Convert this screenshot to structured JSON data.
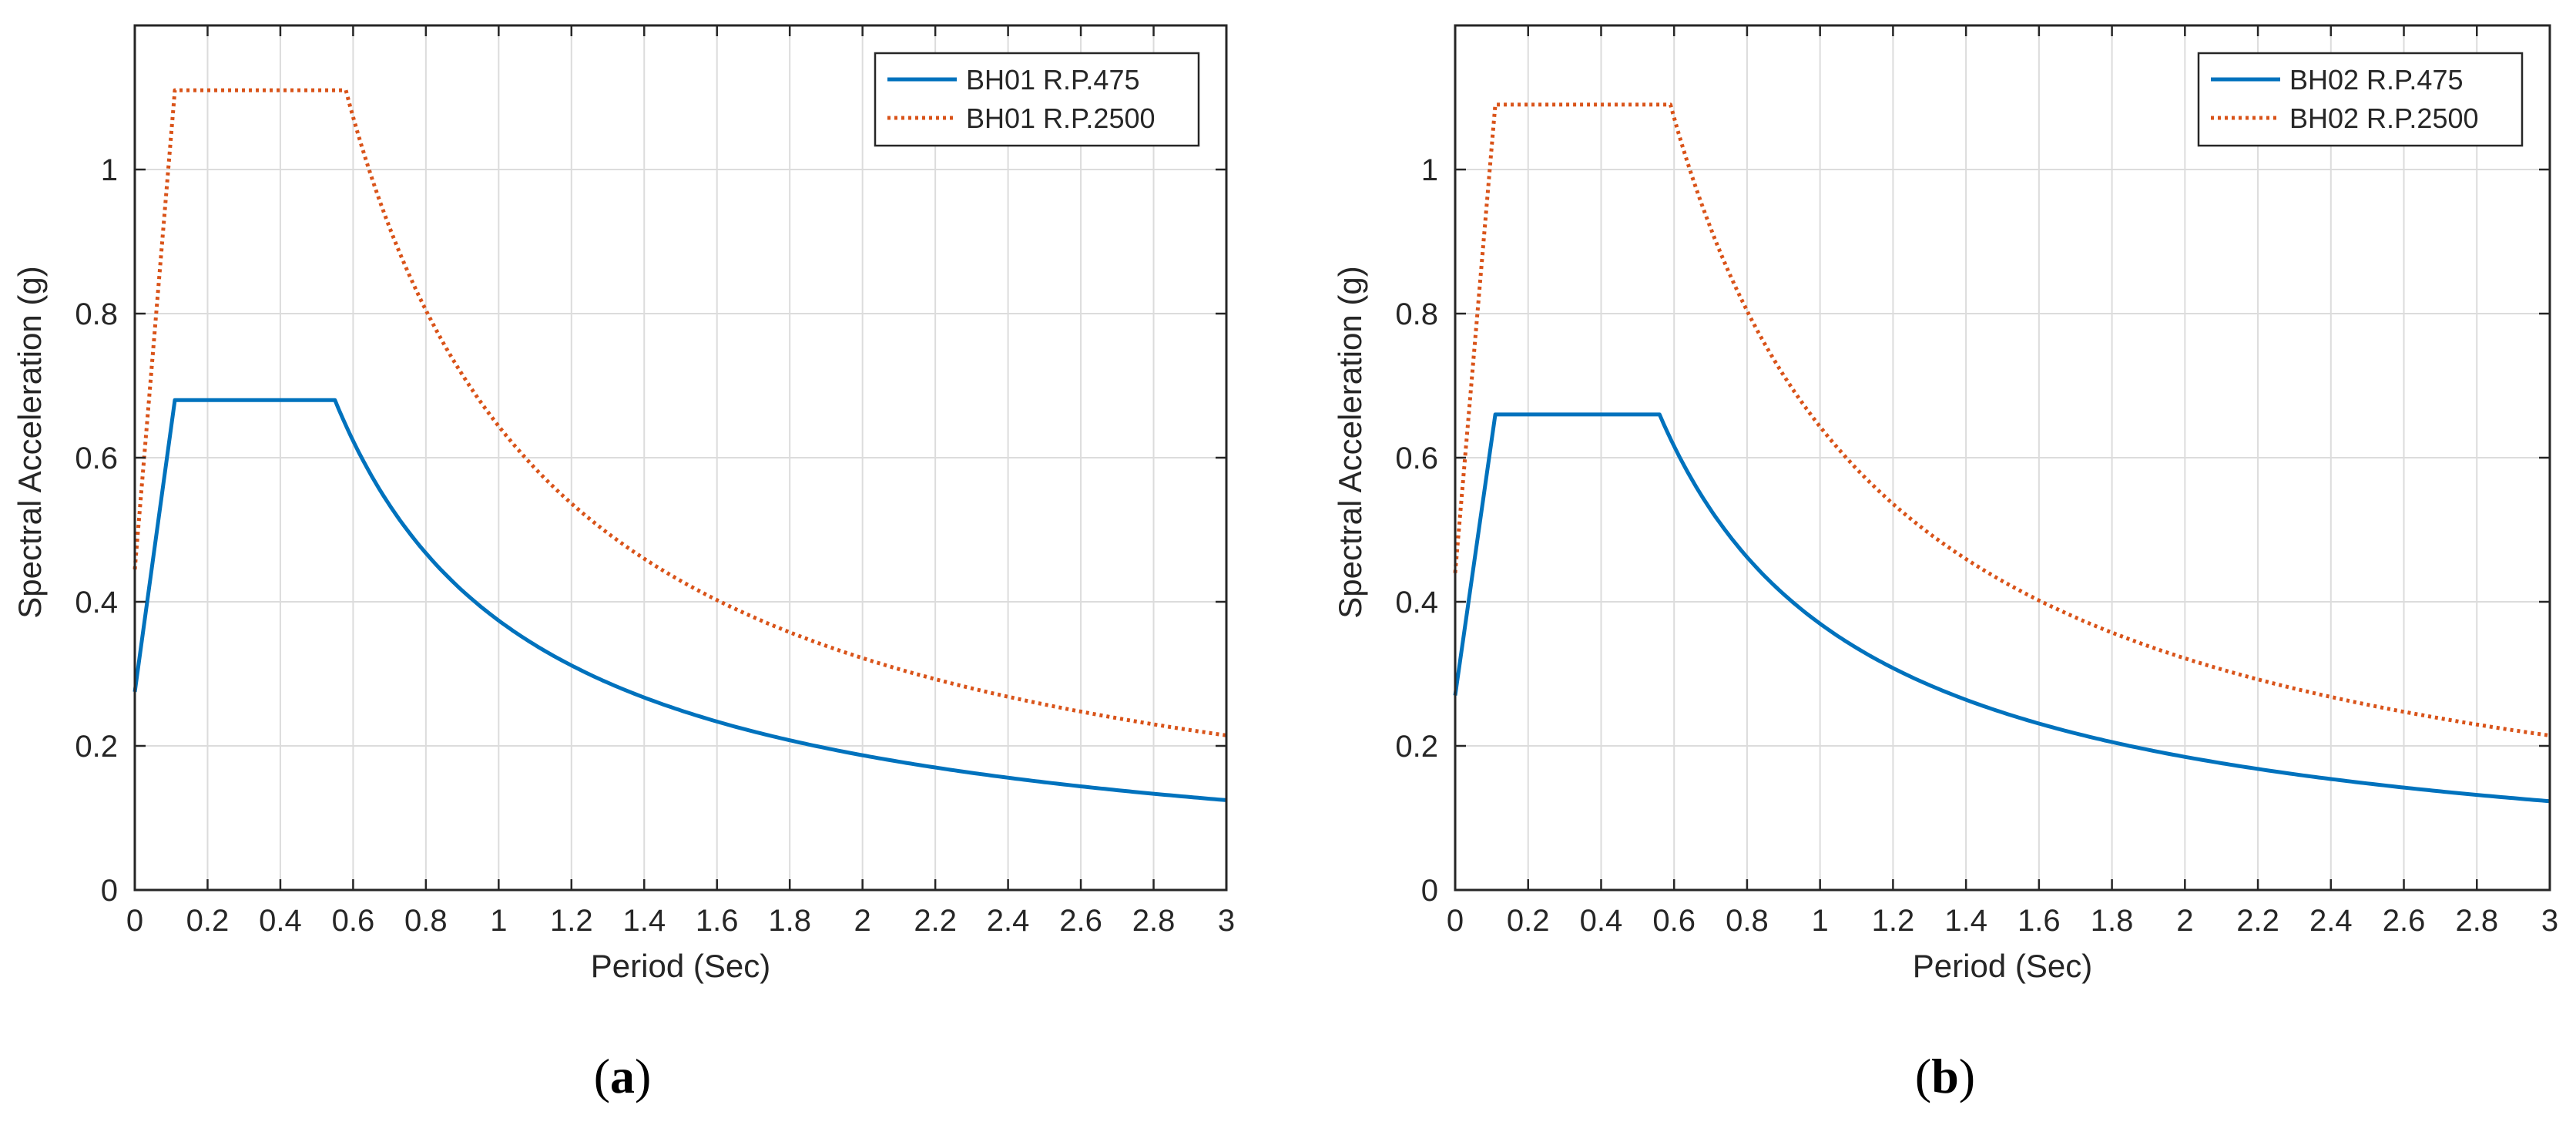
{
  "chart_data": [
    {
      "type": "line",
      "panel_caption": "(a)",
      "caption_open": "(",
      "caption_letter": "a",
      "caption_close": ")",
      "xlabel": "Period (Sec)",
      "ylabel": "Spectral Acceleration (g)",
      "xlim": [
        0,
        3
      ],
      "ylim": [
        0,
        1.2
      ],
      "xticks": [
        0,
        0.2,
        0.4,
        0.6,
        0.8,
        1,
        1.2,
        1.4,
        1.6,
        1.8,
        2,
        2.2,
        2.4,
        2.6,
        2.8,
        3
      ],
      "xtick_labels": [
        "0",
        "0.2",
        "0.4",
        "0.6",
        "0.8",
        "1",
        "1.2",
        "1.4",
        "1.6",
        "1.8",
        "2",
        "2.2",
        "2.4",
        "2.6",
        "2.8",
        "3"
      ],
      "yticks": [
        0,
        0.2,
        0.4,
        0.6,
        0.8,
        1
      ],
      "ytick_labels": [
        "0",
        "0.2",
        "0.4",
        "0.6",
        "0.8",
        "1"
      ],
      "grid": true,
      "legend_position": "top-right",
      "series": [
        {
          "name": "BH01 R.P.475",
          "color": "#0072BD",
          "style": "solid",
          "spectrum": {
            "pga": 0.275,
            "plateau": 0.68,
            "tb": 0.11,
            "tc": 0.55,
            "x_max": 3
          }
        },
        {
          "name": "BH01 R.P.2500",
          "color": "#D95319",
          "style": "dotted",
          "spectrum": {
            "pga": 0.445,
            "plateau": 1.11,
            "tb": 0.11,
            "tc": 0.58,
            "x_max": 3
          }
        }
      ]
    },
    {
      "type": "line",
      "panel_caption": "(b)",
      "caption_open": "(",
      "caption_letter": "b",
      "caption_close": ")",
      "xlabel": "Period (Sec)",
      "ylabel": "Spectral Acceleration (g)",
      "xlim": [
        0,
        3
      ],
      "ylim": [
        0,
        1.2
      ],
      "xticks": [
        0,
        0.2,
        0.4,
        0.6,
        0.8,
        1,
        1.2,
        1.4,
        1.6,
        1.8,
        2,
        2.2,
        2.4,
        2.6,
        2.8,
        3
      ],
      "xtick_labels": [
        "0",
        "0.2",
        "0.4",
        "0.6",
        "0.8",
        "1",
        "1.2",
        "1.4",
        "1.6",
        "1.8",
        "2",
        "2.2",
        "2.4",
        "2.6",
        "2.8",
        "3"
      ],
      "yticks": [
        0,
        0.2,
        0.4,
        0.6,
        0.8,
        1
      ],
      "ytick_labels": [
        "0",
        "0.2",
        "0.4",
        "0.6",
        "0.8",
        "1"
      ],
      "grid": true,
      "legend_position": "top-right",
      "series": [
        {
          "name": "BH02 R.P.475",
          "color": "#0072BD",
          "style": "solid",
          "spectrum": {
            "pga": 0.27,
            "plateau": 0.66,
            "tb": 0.11,
            "tc": 0.56,
            "x_max": 3
          }
        },
        {
          "name": "BH02 R.P.2500",
          "color": "#D95319",
          "style": "dotted",
          "spectrum": {
            "pga": 0.44,
            "plateau": 1.09,
            "tb": 0.11,
            "tc": 0.59,
            "x_max": 3
          }
        }
      ]
    }
  ]
}
